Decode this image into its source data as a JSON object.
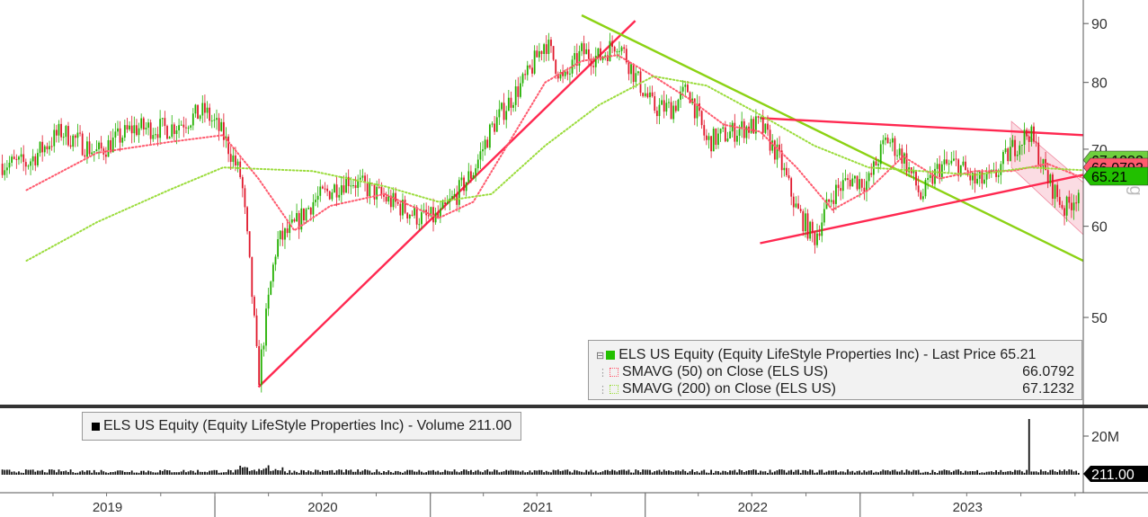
{
  "chart_data": [
    {
      "type": "line",
      "title": "",
      "y_axis": {
        "side": "right",
        "scale": "log",
        "ylim": [
          42,
          94
        ],
        "ticks": [
          50,
          60,
          70,
          80,
          90
        ]
      },
      "x_axis": {
        "ticks": [
          "2019",
          "2020",
          "2021",
          "2022",
          "2023"
        ]
      },
      "grid": false,
      "legend_placement": "bottom-right",
      "series": [
        {
          "name": "ELS US Equity (Equity LifeStyle Properties Inc) - Last Price",
          "legend_value": "65.21",
          "color": "#22c000",
          "style": "candlestick",
          "points": [
            [
              "2019-02",
              68.0
            ],
            [
              "2019-04",
              72.5
            ],
            [
              "2019-06",
              69.5
            ],
            [
              "2019-08",
              73.0
            ],
            [
              "2019-10",
              73.0
            ],
            [
              "2019-12",
              75.5
            ],
            [
              "2020-01",
              72.0
            ],
            [
              "2020-02",
              66.0
            ],
            [
              "2020-03",
              44.0
            ],
            [
              "2020-04",
              58.0
            ],
            [
              "2020-05",
              60.0
            ],
            [
              "2020-06",
              63.0
            ],
            [
              "2020-08",
              66.0
            ],
            [
              "2020-10",
              63.5
            ],
            [
              "2020-12",
              61.0
            ],
            [
              "2021-01",
              61.0
            ],
            [
              "2021-02",
              64.0
            ],
            [
              "2021-03",
              67.0
            ],
            [
              "2021-04",
              73.0
            ],
            [
              "2021-05",
              77.0
            ],
            [
              "2021-06",
              81.0
            ],
            [
              "2021-07",
              87.0
            ],
            [
              "2021-08",
              80.0
            ],
            [
              "2021-09",
              85.0
            ],
            [
              "2021-10",
              84.0
            ],
            [
              "2021-11",
              87.0
            ],
            [
              "2021-12",
              81.0
            ],
            [
              "2022-01",
              76.0
            ],
            [
              "2022-02",
              76.0
            ],
            [
              "2022-03",
              79.0
            ],
            [
              "2022-04",
              71.0
            ],
            [
              "2022-05",
              72.0
            ],
            [
              "2022-06",
              73.0
            ],
            [
              "2022-07",
              73.5
            ],
            [
              "2022-08",
              69.0
            ],
            [
              "2022-09",
              62.0
            ],
            [
              "2022-10",
              58.5
            ],
            [
              "2022-11",
              64.0
            ],
            [
              "2022-12",
              66.0
            ],
            [
              "2023-01",
              65.5
            ],
            [
              "2023-02",
              71.5
            ],
            [
              "2023-03",
              69.0
            ],
            [
              "2023-04",
              63.5
            ],
            [
              "2023-05",
              67.5
            ],
            [
              "2023-06",
              68.0
            ],
            [
              "2023-07",
              65.5
            ],
            [
              "2023-08",
              66.0
            ],
            [
              "2023-09",
              70.0
            ],
            [
              "2023-10",
              72.5
            ],
            [
              "2023-11",
              66.0
            ],
            [
              "2023-12",
              62.0
            ],
            [
              "2024-01",
              65.21
            ]
          ]
        },
        {
          "name": "SMAVG (50)  on Close (ELS US)",
          "legend_value": "66.0792",
          "color": "#ff5a6e",
          "style": "dotted",
          "points": [
            [
              "2019-02",
              64.5
            ],
            [
              "2019-06",
              69.5
            ],
            [
              "2019-10",
              71.0
            ],
            [
              "2020-01",
              72.0
            ],
            [
              "2020-03",
              66.0
            ],
            [
              "2020-05",
              59.5
            ],
            [
              "2020-07",
              62.5
            ],
            [
              "2020-10",
              64.0
            ],
            [
              "2021-01",
              61.0
            ],
            [
              "2021-03",
              63.0
            ],
            [
              "2021-05",
              71.0
            ],
            [
              "2021-07",
              80.0
            ],
            [
              "2021-09",
              83.5
            ],
            [
              "2021-11",
              84.5
            ],
            [
              "2022-01",
              81.0
            ],
            [
              "2022-03",
              77.5
            ],
            [
              "2022-05",
              73.5
            ],
            [
              "2022-07",
              72.5
            ],
            [
              "2022-09",
              67.5
            ],
            [
              "2022-11",
              62.0
            ],
            [
              "2023-01",
              64.5
            ],
            [
              "2023-03",
              69.0
            ],
            [
              "2023-05",
              66.0
            ],
            [
              "2023-07",
              67.0
            ],
            [
              "2023-09",
              67.0
            ],
            [
              "2023-11",
              68.0
            ],
            [
              "2024-01",
              66.0792
            ]
          ]
        },
        {
          "name": "SMAVG (200)  on Close (ELS US)",
          "legend_value": "67.1232",
          "color": "#9bdc3c",
          "style": "dotted",
          "points": [
            [
              "2019-02",
              56.0
            ],
            [
              "2019-06",
              60.5
            ],
            [
              "2019-10",
              64.5
            ],
            [
              "2020-01",
              67.5
            ],
            [
              "2020-06",
              67.0
            ],
            [
              "2020-10",
              65.0
            ],
            [
              "2021-01",
              63.0
            ],
            [
              "2021-04",
              64.0
            ],
            [
              "2021-07",
              70.5
            ],
            [
              "2021-10",
              76.5
            ],
            [
              "2022-01",
              81.0
            ],
            [
              "2022-04",
              79.5
            ],
            [
              "2022-07",
              75.0
            ],
            [
              "2022-10",
              70.5
            ],
            [
              "2023-01",
              67.5
            ],
            [
              "2023-04",
              67.0
            ],
            [
              "2023-07",
              66.5
            ],
            [
              "2023-10",
              67.5
            ],
            [
              "2024-01",
              67.1232
            ]
          ]
        }
      ],
      "last_value_labels": [
        {
          "value": "67.1232",
          "color": "#6fcf3f"
        },
        {
          "value": "66.0792",
          "color": "#ff5a6e"
        },
        {
          "value": "65.21",
          "color": "#22c000"
        }
      ],
      "trendlines": [
        {
          "color": "#ff2850",
          "from": [
            "2020-03",
            43.5
          ],
          "to": [
            "2021-12",
            90.5
          ]
        },
        {
          "color": "#8cd214",
          "from": [
            "2021-09",
            91.5
          ],
          "to": [
            "2024-01",
            56.0
          ]
        },
        {
          "color": "#ff2850",
          "from": [
            "2022-07",
            74.5
          ],
          "to": [
            "2024-01",
            72.0
          ]
        },
        {
          "color": "#ff2850",
          "from": [
            "2022-07",
            58.0
          ],
          "to": [
            "2024-01",
            66.5
          ]
        }
      ],
      "channel": {
        "color": "#f7c0cc",
        "upper_from": [
          "2023-09",
          74.0
        ],
        "upper_to": [
          "2024-01",
          65.5
        ],
        "lower_from": [
          "2023-09",
          67.5
        ],
        "lower_to": [
          "2024-01",
          59.0
        ]
      },
      "axis_side_label": "lg"
    },
    {
      "type": "bar",
      "title": "",
      "series": [
        {
          "name": "ELS US Equity (Equity LifeStyle Properties Inc) - Volume",
          "legend_value": "211.00",
          "color": "#000000"
        }
      ],
      "y_axis": {
        "side": "right",
        "ticks": [
          "20M"
        ]
      },
      "last_value_label": {
        "value": "211.00",
        "color": "#000000"
      },
      "spike": {
        "x": "2023-10",
        "value": "large"
      }
    }
  ],
  "legends": {
    "price": {
      "title_label": "ELS US Equity (Equity LifeStyle Properties Inc) - Last Price",
      "title_value": "65.21",
      "sma50_label": "SMAVG (50)  on Close (ELS US)",
      "sma50_value": "66.0792",
      "sma200_label": "SMAVG (200)  on Close (ELS US)",
      "sma200_value": "67.1232"
    },
    "volume": {
      "label": "ELS US Equity (Equity LifeStyle Properties Inc) - Volume 211.00"
    }
  }
}
